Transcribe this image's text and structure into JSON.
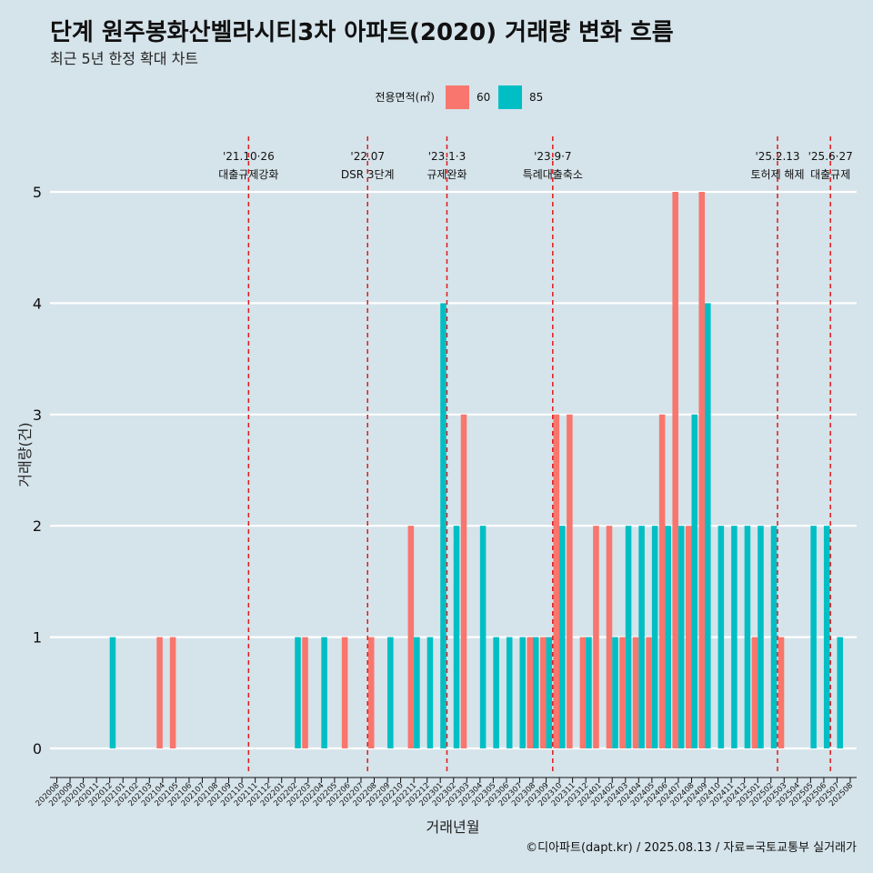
{
  "chart_data": {
    "type": "bar",
    "title": "단계 원주봉화산벨라시티3차 아파트(2020) 거래량 변화 흐름",
    "subtitle": "최근 5년 한정 확대 차트",
    "xlabel": "거래년월",
    "ylabel": "거래량(건)",
    "ylim": [
      0,
      5
    ],
    "yticks": [
      "0",
      "1",
      "2",
      "3",
      "4",
      "5"
    ],
    "legend_title": "전용면적(㎡)",
    "caption": "©디아파트(dapt.kr) / 2025.08.13 / 자료=국토교통부 실거래가",
    "categories": [
      "202008",
      "202009",
      "202010",
      "202011",
      "202012",
      "202101",
      "202102",
      "202103",
      "202104",
      "202105",
      "202106",
      "202107",
      "202108",
      "202109",
      "202110",
      "202111",
      "202112",
      "202201",
      "202202",
      "202203",
      "202204",
      "202205",
      "202206",
      "202207",
      "202208",
      "202209",
      "202210",
      "202211",
      "202212",
      "202301",
      "202302",
      "202303",
      "202304",
      "202305",
      "202306",
      "202307",
      "202308",
      "202309",
      "202310",
      "202311",
      "202312",
      "202401",
      "202402",
      "202403",
      "202404",
      "202405",
      "202406",
      "202407",
      "202408",
      "202409",
      "202410",
      "202411",
      "202412",
      "202501",
      "202502",
      "202503",
      "202504",
      "202505",
      "202506",
      "202507",
      "202508"
    ],
    "series": [
      {
        "name": "60",
        "color": "#f8766d",
        "values": [
          0,
          0,
          0,
          0,
          0,
          0,
          0,
          0,
          1,
          1,
          0,
          0,
          0,
          0,
          0,
          0,
          0,
          0,
          0,
          1,
          0,
          0,
          1,
          0,
          1,
          0,
          0,
          2,
          0,
          0,
          0,
          3,
          0,
          0,
          0,
          0,
          1,
          1,
          3,
          3,
          1,
          2,
          2,
          1,
          1,
          1,
          3,
          5,
          2,
          5,
          0,
          0,
          0,
          1,
          0,
          1,
          0,
          0,
          0,
          0,
          0
        ]
      },
      {
        "name": "85",
        "color": "#00bfc4",
        "values": [
          0,
          0,
          0,
          0,
          1,
          0,
          0,
          0,
          0,
          0,
          0,
          0,
          0,
          0,
          0,
          0,
          0,
          0,
          1,
          0,
          1,
          0,
          0,
          0,
          0,
          1,
          0,
          1,
          1,
          4,
          2,
          0,
          2,
          1,
          1,
          1,
          1,
          1,
          2,
          0,
          1,
          0,
          1,
          2,
          2,
          2,
          2,
          2,
          3,
          4,
          2,
          2,
          2,
          2,
          2,
          0,
          0,
          2,
          2,
          1,
          0
        ]
      }
    ],
    "events": [
      {
        "date": "'21.10·26",
        "label": "대출규제강화",
        "after": "202110"
      },
      {
        "date": "'22.07",
        "label": "DSR 3단계",
        "after": "202207"
      },
      {
        "date": "'23.1·3",
        "label": "규제완화",
        "after": "202301"
      },
      {
        "date": "'23.9·7",
        "label": "특례대출축소",
        "after": "202309"
      },
      {
        "date": "'25.2.13",
        "label": "토허제 해제",
        "after": "202502"
      },
      {
        "date": "'25.6·27",
        "label": "대출규제",
        "after": "202506"
      }
    ]
  }
}
